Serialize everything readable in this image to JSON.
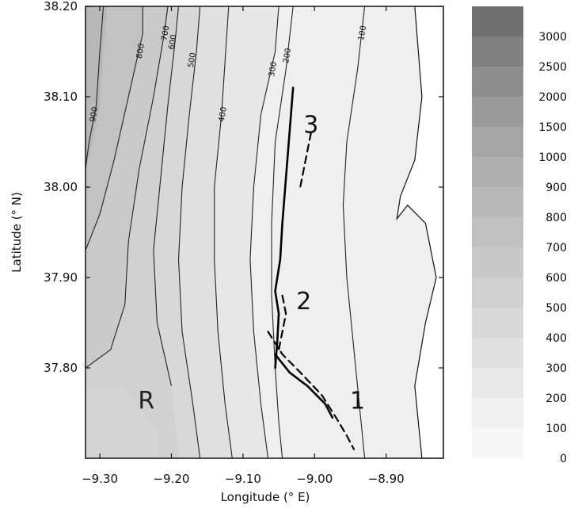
{
  "chart_data": {
    "type": "heatmap",
    "title": "",
    "xlabel": "Longitude (° E)",
    "ylabel": "Latitude (° N)",
    "xlim": [
      -9.32,
      -8.82
    ],
    "ylim": [
      37.7,
      38.2
    ],
    "x_ticks": [
      -9.3,
      -9.2,
      -9.1,
      -9.0,
      -8.9
    ],
    "x_tick_labels": [
      "−9.30",
      "−9.20",
      "−9.10",
      "−9.00",
      "−8.90"
    ],
    "y_ticks": [
      37.8,
      37.9,
      38.0,
      38.1,
      38.2
    ],
    "y_tick_labels": [
      "37.80",
      "37.90",
      "38.00",
      "38.10",
      "38.20"
    ],
    "colorbar": {
      "levels": [
        0,
        100,
        200,
        300,
        400,
        500,
        600,
        700,
        800,
        900,
        1000,
        1500,
        2000,
        2500,
        3000
      ],
      "labels": [
        "0",
        "100",
        "200",
        "300",
        "400",
        "500",
        "600",
        "700",
        "800",
        "900",
        "1000",
        "1500",
        "2000",
        "2500",
        "3000"
      ],
      "colors": [
        "#f7f7f7",
        "#f0f0f0",
        "#e8e8e8",
        "#e0e0e0",
        "#d8d8d8",
        "#d0d0d0",
        "#c8c8c8",
        "#c0c0c0",
        "#b8b8b8",
        "#b0b0b0",
        "#a6a6a6",
        "#9a9a9a",
        "#8e8e8e",
        "#808080",
        "#707070",
        "#606060"
      ]
    },
    "contours": [
      {
        "level": "100",
        "label": "100",
        "points": [
          [
            -8.93,
            38.2
          ],
          [
            -8.94,
            38.13
          ],
          [
            -8.955,
            38.05
          ],
          [
            -8.96,
            37.98
          ],
          [
            -8.955,
            37.9
          ],
          [
            -8.945,
            37.82
          ],
          [
            -8.935,
            37.74
          ],
          [
            -8.93,
            37.7
          ]
        ],
        "label_at": [
          -8.93,
          38.17
        ]
      },
      {
        "level": "200",
        "label": "200",
        "points": [
          [
            -9.03,
            38.2
          ],
          [
            -9.04,
            38.13
          ],
          [
            -9.055,
            38.05
          ],
          [
            -9.06,
            37.96
          ],
          [
            -9.06,
            37.88
          ],
          [
            -9.055,
            37.8
          ],
          [
            -9.05,
            37.74
          ],
          [
            -9.045,
            37.7
          ]
        ],
        "label_at": [
          -9.035,
          38.145
        ]
      },
      {
        "level": "300",
        "label": "300",
        "points": [
          [
            -9.05,
            38.2
          ],
          [
            -9.055,
            38.15
          ],
          [
            -9.075,
            38.08
          ],
          [
            -9.085,
            38.0
          ],
          [
            -9.09,
            37.92
          ],
          [
            -9.085,
            37.84
          ],
          [
            -9.075,
            37.76
          ],
          [
            -9.065,
            37.7
          ]
        ],
        "label_at": [
          -9.055,
          38.13
        ]
      },
      {
        "level": "400",
        "label": "400",
        "points": [
          [
            -9.12,
            38.2
          ],
          [
            -9.125,
            38.14
          ],
          [
            -9.13,
            38.08
          ],
          [
            -9.14,
            38.0
          ],
          [
            -9.14,
            37.92
          ],
          [
            -9.135,
            37.84
          ],
          [
            -9.125,
            37.76
          ],
          [
            -9.115,
            37.7
          ]
        ],
        "label_at": [
          -9.125,
          38.08
        ]
      },
      {
        "level": "500",
        "label": "500",
        "points": [
          [
            -9.16,
            38.2
          ],
          [
            -9.165,
            38.15
          ],
          [
            -9.175,
            38.08
          ],
          [
            -9.185,
            38.0
          ],
          [
            -9.19,
            37.92
          ],
          [
            -9.185,
            37.84
          ],
          [
            -9.17,
            37.76
          ],
          [
            -9.16,
            37.7
          ]
        ],
        "label_at": [
          -9.168,
          38.14
        ]
      },
      {
        "level": "600",
        "label": "600",
        "points": [
          [
            -9.19,
            38.2
          ],
          [
            -9.195,
            38.16
          ],
          [
            -9.205,
            38.09
          ],
          [
            -9.215,
            38.01
          ],
          [
            -9.225,
            37.93
          ],
          [
            -9.22,
            37.85
          ],
          [
            -9.2,
            37.78
          ]
        ],
        "label_at": [
          -9.195,
          38.16
        ]
      },
      {
        "level": "700",
        "label": "700",
        "points": [
          [
            -9.205,
            38.2
          ],
          [
            -9.21,
            38.17
          ],
          [
            -9.225,
            38.1
          ],
          [
            -9.245,
            38.02
          ],
          [
            -9.26,
            37.94
          ],
          [
            -9.265,
            37.87
          ],
          [
            -9.285,
            37.82
          ],
          [
            -9.32,
            37.8
          ]
        ],
        "label_at": [
          -9.205,
          38.17
        ]
      },
      {
        "level": "800",
        "label": "800",
        "points": [
          [
            -9.24,
            38.2
          ],
          [
            -9.24,
            38.17
          ],
          [
            -9.26,
            38.1
          ],
          [
            -9.28,
            38.03
          ],
          [
            -9.3,
            37.97
          ],
          [
            -9.32,
            37.93
          ]
        ],
        "label_at": [
          -9.24,
          38.15
        ]
      },
      {
        "level": "900",
        "label": "900",
        "points": [
          [
            -9.295,
            38.2
          ],
          [
            -9.3,
            38.15
          ],
          [
            -9.305,
            38.09
          ],
          [
            -9.315,
            38.05
          ],
          [
            -9.32,
            38.02
          ]
        ],
        "label_at": [
          -9.305,
          38.08
        ]
      }
    ],
    "tracks": [
      {
        "id": "1",
        "style": "solid",
        "points": [
          [
            -9.055,
            37.815
          ],
          [
            -9.035,
            37.795
          ],
          [
            -9.01,
            37.78
          ],
          [
            -8.985,
            37.76
          ],
          [
            -8.975,
            37.745
          ]
        ]
      },
      {
        "id": "1",
        "style": "dashed",
        "points": [
          [
            -9.065,
            37.84
          ],
          [
            -9.045,
            37.815
          ],
          [
            -9.02,
            37.795
          ],
          [
            -8.99,
            37.77
          ],
          [
            -8.97,
            37.745
          ],
          [
            -8.955,
            37.725
          ],
          [
            -8.945,
            37.71
          ]
        ]
      },
      {
        "id": "2",
        "style": "solid",
        "points": [
          [
            -9.03,
            38.11
          ],
          [
            -9.035,
            38.06
          ],
          [
            -9.04,
            38.01
          ],
          [
            -9.045,
            37.96
          ],
          [
            -9.048,
            37.92
          ],
          [
            -9.055,
            37.885
          ],
          [
            -9.05,
            37.86
          ],
          [
            -9.052,
            37.83
          ],
          [
            -9.055,
            37.8
          ]
        ]
      },
      {
        "id": "2",
        "style": "dashed",
        "points": [
          [
            -9.045,
            37.88
          ],
          [
            -9.04,
            37.86
          ],
          [
            -9.045,
            37.84
          ],
          [
            -9.05,
            37.82
          ]
        ]
      },
      {
        "id": "3",
        "style": "dashed",
        "points": [
          [
            -9.005,
            38.06
          ],
          [
            -9.01,
            38.04
          ],
          [
            -9.015,
            38.02
          ],
          [
            -9.02,
            38.0
          ]
        ]
      }
    ],
    "labels": [
      {
        "text": "1",
        "at": [
          -8.94,
          37.755
        ]
      },
      {
        "text": "2",
        "at": [
          -9.015,
          37.865
        ]
      },
      {
        "text": "3",
        "at": [
          -9.005,
          38.06
        ]
      },
      {
        "text": "R",
        "at": [
          -9.235,
          37.755
        ]
      }
    ]
  }
}
